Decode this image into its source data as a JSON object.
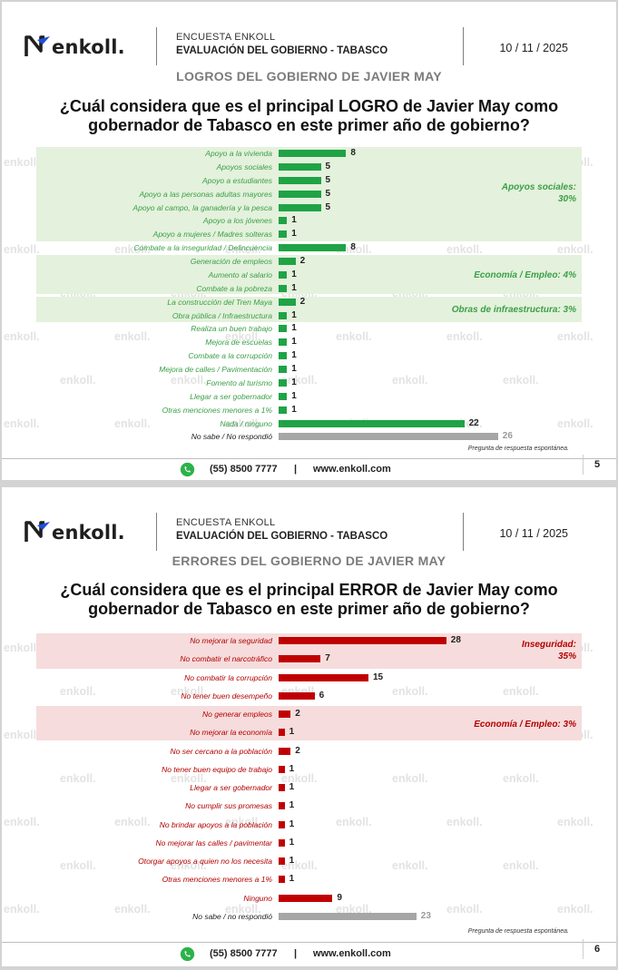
{
  "brand": {
    "logo_text": "enkoll."
  },
  "slides": [
    {
      "survey_label": "ENCUESTA ENKOLL",
      "survey_title": "EVALUACIÓN DEL GOBIERNO - TABASCO",
      "date": "10 / 11 / 2025",
      "section_title": "LOGROS DEL GOBIERNO DE JAVIER MAY",
      "question_line1": "¿Cuál considera que es el principal LOGRO de Javier May como",
      "question_line2": "gobernador de Tabasco en este primer año de gobierno?",
      "categories": [
        {
          "line1": "Apoyos sociales:",
          "line2": "30%"
        },
        {
          "line1": "Economía / Empleo: 4%",
          "line2": ""
        },
        {
          "line1": "Obras de infraestructura: 3%",
          "line2": ""
        }
      ],
      "note": "Pregunta de respuesta espontánea.",
      "phone": "(55) 8500 7777",
      "separator": "|",
      "website": "www.enkoll.com",
      "page_number": "5"
    },
    {
      "survey_label": "ENCUESTA ENKOLL",
      "survey_title": "EVALUACIÓN DEL GOBIERNO - TABASCO",
      "date": "10 / 11 / 2025",
      "section_title": "ERRORES DEL GOBIERNO DE JAVIER MAY",
      "question_line1": "¿Cuál considera que es el principal ERROR de Javier May como",
      "question_line2": "gobernador de Tabasco en este primer año de gobierno?",
      "categories": [
        {
          "line1": "Inseguridad:",
          "line2": "35%"
        },
        {
          "line1": "Economía / Empleo: 3%",
          "line2": ""
        }
      ],
      "note": "Pregunta de respuesta espontánea.",
      "phone": "(55) 8500 7777",
      "separator": "|",
      "website": "www.enkoll.com",
      "page_number": "6"
    }
  ],
  "chart_data": [
    {
      "type": "bar",
      "orientation": "horizontal",
      "title": "¿Cuál considera que es el principal LOGRO de Javier May como gobernador de Tabasco en este primer año de gobierno?",
      "categories": [
        "Apoyo a la vivienda",
        "Apoyos sociales",
        "Apoyo a estudiantes",
        "Apoyo a las personas adultas mayores",
        "Apoyo al campo, la ganadería y la pesca",
        "Apoyo a los jóvenes",
        "Apoyo a mujeres / Madres solteras",
        "Combate a la inseguridad / Delincuencia",
        "Generación de empleos",
        "Aumento al salario",
        "Combate a la pobreza",
        "La construcción del Tren Maya",
        "Obra pública / Infraestructura",
        "Realiza un buen trabajo",
        "Mejora de escuelas",
        "Combate a la corrupción",
        "Mejora de calles / Pavimentación",
        "Fomento al turismo",
        "Llegar a ser gobernador",
        "Otras menciones menores a 1%",
        "Nada / ninguno",
        "No sabe / No respondió"
      ],
      "values": [
        8,
        5,
        5,
        5,
        5,
        1,
        1,
        8,
        2,
        1,
        1,
        2,
        1,
        1,
        1,
        1,
        1,
        1,
        1,
        1,
        22,
        26
      ],
      "colors": {
        "bar": "#1fa346",
        "nonresponse": "#a6a6a6",
        "band": "#e4f1dc"
      }
    },
    {
      "type": "bar",
      "orientation": "horizontal",
      "title": "¿Cuál considera que es el principal ERROR de Javier May como gobernador de Tabasco en este primer año de gobierno?",
      "categories": [
        "No mejorar la seguridad",
        "No combatir el narcotráfico",
        "No combatir la corrupción",
        "No tener buen desempeño",
        "No generar empleos",
        "No mejorar la economía",
        "No ser cercano a la población",
        "No tener buen equipo de trabajo",
        "Llegar a ser gobernador",
        "No cumplir sus promesas",
        "No brindar apoyos a la población",
        "No mejorar las calles / pavimentar",
        "Otorgar apoyos a quien no los necesita",
        "Otras menciones menores a 1%",
        "Ninguno",
        "No sabe / no respondió"
      ],
      "values": [
        28,
        7,
        15,
        6,
        2,
        1,
        2,
        1,
        1,
        1,
        1,
        1,
        1,
        1,
        9,
        23
      ],
      "colors": {
        "bar": "#c00000",
        "nonresponse": "#a6a6a6",
        "band": "#f6dcdc"
      }
    }
  ]
}
